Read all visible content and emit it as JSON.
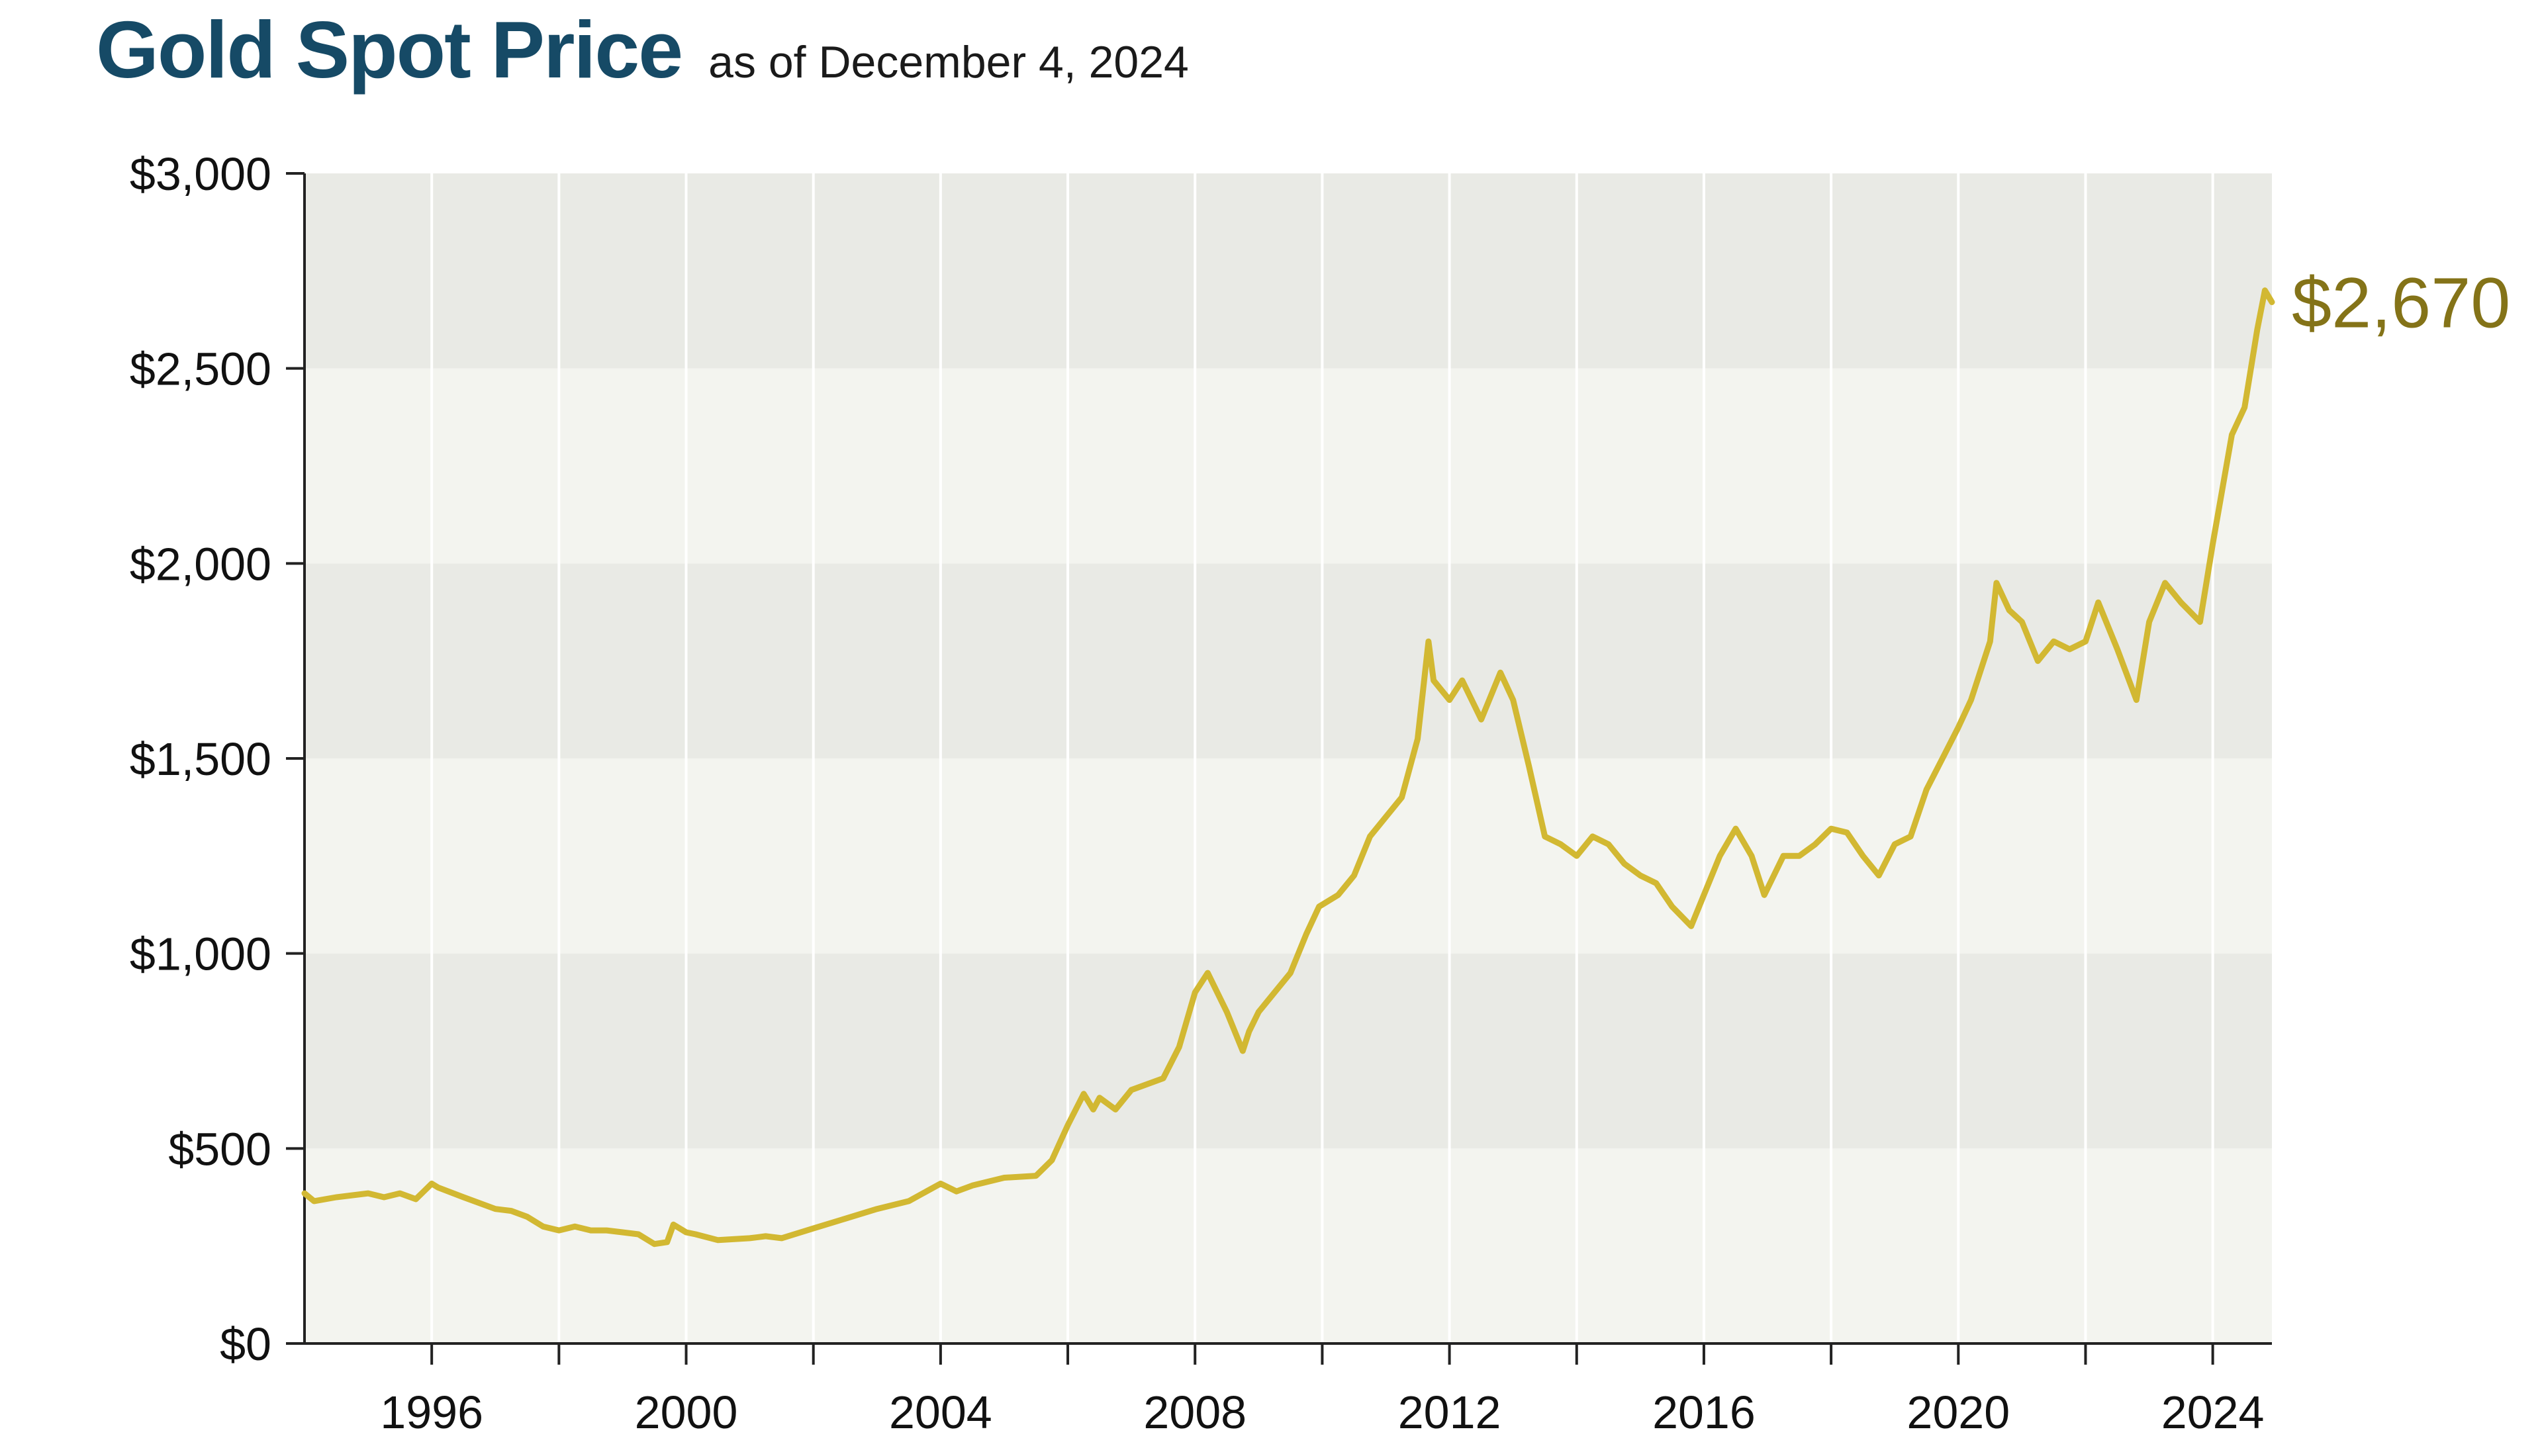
{
  "header": {
    "title": "Gold Spot Price",
    "subtitle": "as of December 4, 2024"
  },
  "colors": {
    "title": "#164a66",
    "line": "#d2b832",
    "end_label": "#847318",
    "band_dark": "#e9eae5",
    "band_light": "#f3f4ef",
    "grid": "#ffffff",
    "axis": "#222222"
  },
  "chart_data": {
    "type": "line",
    "title": "Gold Spot Price",
    "subtitle": "as of December 4, 2024",
    "xlabel": "",
    "ylabel": "",
    "xlim": [
      1994.0,
      2024.93
    ],
    "ylim": [
      0,
      3000
    ],
    "y_ticks": [
      0,
      500,
      1000,
      1500,
      2000,
      2500,
      3000
    ],
    "y_tick_labels": [
      "$0",
      "$500",
      "$1,000",
      "$1,500",
      "$2,000",
      "$2,500",
      "$3,000"
    ],
    "x_ticks": [
      1996,
      1998,
      2000,
      2002,
      2004,
      2006,
      2008,
      2010,
      2012,
      2014,
      2016,
      2018,
      2020,
      2022,
      2024
    ],
    "x_tick_labels": [
      {
        "year": 1996,
        "label": "1996"
      },
      {
        "year": 2000,
        "label": "2000"
      },
      {
        "year": 2004,
        "label": "2004"
      },
      {
        "year": 2008,
        "label": "2008"
      },
      {
        "year": 2012,
        "label": "2012"
      },
      {
        "year": 2016,
        "label": "2016"
      },
      {
        "year": 2020,
        "label": "2020"
      },
      {
        "year": 2024,
        "label": "2024"
      }
    ],
    "grid": "vertical lines with alternating horizontal bands",
    "end_label": "$2,670",
    "series": [
      {
        "x": [
          1994.0,
          1994.15,
          1994.5,
          1995.0,
          1995.25,
          1995.5,
          1995.75,
          1996.0,
          1996.1,
          1996.5,
          1997.0,
          1997.25,
          1997.5,
          1997.75,
          1998.0,
          1998.25,
          1998.5,
          1998.75,
          1999.0,
          1999.25,
          1999.5,
          1999.7,
          1999.8,
          2000.0,
          2000.15,
          2000.5,
          2001.0,
          2001.25,
          2001.5,
          2002.0,
          2002.5,
          2003.0,
          2003.5,
          2004.0,
          2004.25,
          2004.5,
          2005.0,
          2005.5,
          2005.75,
          2006.0,
          2006.25,
          2006.4,
          2006.5,
          2006.75,
          2007.0,
          2007.5,
          2007.75,
          2008.0,
          2008.2,
          2008.5,
          2008.75,
          2008.85,
          2009.0,
          2009.25,
          2009.5,
          2009.75,
          2009.95,
          2010.25,
          2010.5,
          2010.75,
          2011.0,
          2011.25,
          2011.5,
          2011.67,
          2011.75,
          2012.0,
          2012.2,
          2012.5,
          2012.8,
          2013.0,
          2013.25,
          2013.5,
          2013.75,
          2014.0,
          2014.25,
          2014.5,
          2014.75,
          2015.0,
          2015.25,
          2015.5,
          2015.8,
          2016.0,
          2016.25,
          2016.5,
          2016.75,
          2016.95,
          2017.25,
          2017.5,
          2017.75,
          2018.0,
          2018.25,
          2018.5,
          2018.75,
          2019.0,
          2019.25,
          2019.5,
          2019.75,
          2020.0,
          2020.2,
          2020.5,
          2020.6,
          2020.8,
          2021.0,
          2021.25,
          2021.5,
          2021.75,
          2022.0,
          2022.2,
          2022.5,
          2022.8,
          2023.0,
          2023.25,
          2023.5,
          2023.8,
          2024.0,
          2024.3,
          2024.5,
          2024.7,
          2024.82,
          2024.93
        ],
        "y": [
          385,
          365,
          375,
          385,
          375,
          385,
          370,
          410,
          400,
          375,
          345,
          340,
          325,
          300,
          290,
          300,
          290,
          290,
          285,
          280,
          255,
          260,
          305,
          285,
          280,
          265,
          270,
          275,
          270,
          295,
          320,
          345,
          365,
          410,
          390,
          405,
          425,
          430,
          470,
          560,
          640,
          600,
          630,
          600,
          650,
          680,
          760,
          900,
          950,
          850,
          750,
          800,
          850,
          900,
          950,
          1050,
          1120,
          1150,
          1200,
          1300,
          1350,
          1400,
          1550,
          1800,
          1700,
          1650,
          1700,
          1600,
          1720,
          1650,
          1480,
          1300,
          1280,
          1250,
          1300,
          1280,
          1230,
          1200,
          1180,
          1120,
          1070,
          1150,
          1250,
          1320,
          1250,
          1150,
          1250,
          1250,
          1280,
          1320,
          1310,
          1250,
          1200,
          1280,
          1300,
          1420,
          1500,
          1580,
          1650,
          1800,
          1950,
          1880,
          1850,
          1750,
          1800,
          1780,
          1800,
          1900,
          1780,
          1650,
          1850,
          1950,
          1900,
          1850,
          2050,
          2330,
          2400,
          2600,
          2700,
          2670
        ]
      }
    ]
  }
}
